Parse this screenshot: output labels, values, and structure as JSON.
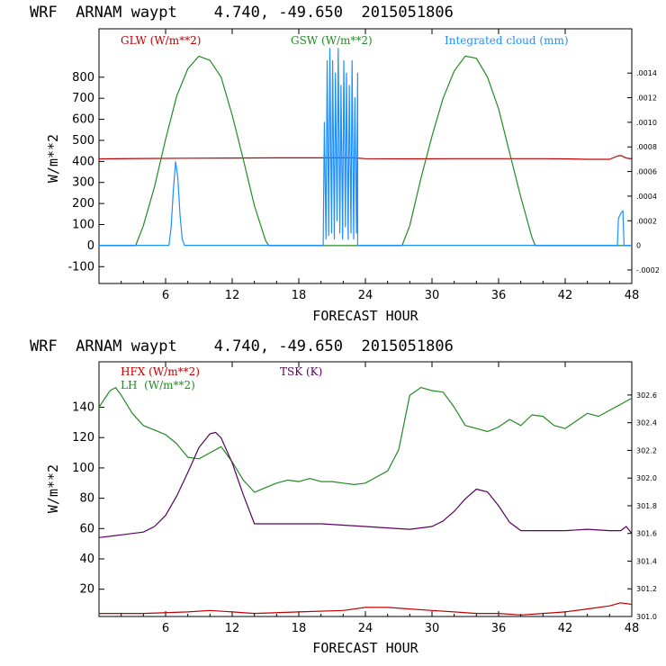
{
  "colors": {
    "red": "#c00000",
    "green": "#228b22",
    "blue": "#1e8fff",
    "purple": "#5a0060"
  },
  "chart_data": [
    {
      "type": "line",
      "title": "WRF  ARNAM waypt    4.740, -49.650  2015051806",
      "xlabel": "FORECAST HOUR",
      "ylabel": "W/m**2",
      "xlim": [
        0,
        48
      ],
      "ylim": [
        -180,
        1030
      ],
      "xticks": [
        6,
        12,
        18,
        24,
        30,
        36,
        42,
        48
      ],
      "yticks": [
        -100,
        0,
        100,
        200,
        300,
        400,
        500,
        600,
        700,
        800
      ],
      "y2ticks": [
        "-.0002",
        "0",
        ".0002",
        ".0004",
        ".0006",
        ".0008",
        ".0010",
        ".0012",
        ".0014"
      ],
      "y2ticks_values": [
        -0.0002,
        0,
        0.0002,
        0.0004,
        0.0006,
        0.0008,
        0.001,
        0.0012,
        0.0014
      ],
      "y2lim": [
        -0.00031,
        0.00176
      ],
      "legend": [
        {
          "name": "GLW (W/m**2)",
          "color": "#c00000"
        },
        {
          "name": "GSW (W/m**2)",
          "color": "#228b22"
        },
        {
          "name": "Integrated cloud (mm)",
          "color": "#1e8fff"
        }
      ],
      "series": [
        {
          "name": "GLW (W/m**2)",
          "axis": "left",
          "color": "#c00000",
          "x": [
            0,
            4,
            8,
            12,
            16,
            20,
            23,
            24,
            28,
            32,
            36,
            40,
            42,
            44,
            46,
            46.7,
            47,
            47.5,
            48
          ],
          "y": [
            412,
            414,
            415,
            416,
            417,
            417,
            417,
            413,
            412,
            413,
            413,
            413,
            412,
            410,
            410,
            425,
            428,
            416,
            412
          ]
        },
        {
          "name": "GSW (W/m**2)",
          "axis": "left",
          "color": "#228b22",
          "x": [
            0,
            3,
            3.3,
            4,
            5,
            6,
            7,
            8,
            9,
            10,
            11,
            12,
            13,
            14,
            15,
            15.3,
            27,
            27.3,
            28,
            29,
            30,
            31,
            32,
            33,
            34,
            35,
            36,
            37,
            38,
            39,
            39.3,
            48
          ],
          "y": [
            0,
            0,
            0,
            95,
            280,
            505,
            710,
            840,
            900,
            880,
            800,
            620,
            410,
            190,
            25,
            0,
            0,
            0,
            95,
            320,
            520,
            700,
            830,
            900,
            890,
            800,
            650,
            440,
            230,
            40,
            0,
            0
          ]
        },
        {
          "name": "Integrated cloud (mm)",
          "axis": "right",
          "color": "#1e8fff",
          "x": [
            0,
            6.3,
            6.5,
            6.7,
            6.9,
            7.1,
            7.3,
            7.5,
            7.7,
            8.0,
            20.2,
            20.3,
            20.45,
            20.55,
            20.7,
            20.8,
            20.95,
            21.05,
            21.2,
            21.3,
            21.45,
            21.55,
            21.7,
            21.8,
            21.95,
            22.05,
            22.2,
            22.3,
            22.45,
            22.55,
            22.7,
            22.8,
            22.95,
            23.05,
            23.2,
            23.3,
            23.3,
            46.7,
            46.8,
            47.0,
            47.2,
            47.3,
            48
          ],
          "y": [
            0,
            0,
            0.00015,
            0.00045,
            0.00068,
            0.00055,
            0.00025,
            5e-05,
            0,
            0,
            0,
            0.001,
            5e-05,
            0.0015,
            8e-05,
            0.0016,
            0.0001,
            0.0015,
            5e-05,
            0.0014,
            0.0002,
            0.0016,
            0.0001,
            0.0013,
            5e-05,
            0.0015,
            0.00015,
            0.0014,
            5e-05,
            0.0013,
            0.0001,
            0.0015,
            5e-05,
            0.0012,
            0.0001,
            0.0014,
            0,
            0,
            0.00022,
            0.00026,
            0.00028,
            0,
            0
          ]
        }
      ]
    },
    {
      "type": "line",
      "title": "WRF  ARNAM waypt    4.740, -49.650  2015051806",
      "xlabel": "FORECAST HOUR",
      "ylabel": "W/m**2",
      "xlim": [
        0,
        48
      ],
      "ylim": [
        2,
        170
      ],
      "xticks": [
        6,
        12,
        18,
        24,
        30,
        36,
        42,
        48
      ],
      "yticks": [
        20,
        40,
        60,
        80,
        100,
        120,
        140
      ],
      "y2ticks": [
        "301.0",
        "301.2",
        "301.4",
        "301.6",
        "301.8",
        "302.0",
        "302.2",
        "302.4",
        "302.6"
      ],
      "y2ticks_values": [
        301.0,
        301.2,
        301.4,
        301.6,
        301.8,
        302.0,
        302.2,
        302.4,
        302.6
      ],
      "y2lim": [
        301.0,
        302.84
      ],
      "legend": [
        {
          "name": "HFX (W/m**2)",
          "color": "#c00000"
        },
        {
          "name": "LH  (W/m**2)",
          "color": "#228b22"
        },
        {
          "name": "TSK (K)",
          "color": "#5a0060"
        }
      ],
      "series": [
        {
          "name": "HFX (W/m**2)",
          "axis": "left",
          "color": "#c00000",
          "x": [
            0,
            4,
            8,
            10,
            12,
            14,
            18,
            22,
            24,
            26,
            28,
            30,
            32,
            34,
            36,
            38,
            40,
            42,
            44,
            46,
            47,
            48
          ],
          "y": [
            4,
            4,
            5,
            6,
            5,
            4,
            5,
            6,
            8,
            8,
            7,
            6,
            5,
            4,
            4,
            3,
            4,
            5,
            7,
            9,
            11,
            10
          ]
        },
        {
          "name": "LH  (W/m**2)",
          "axis": "left",
          "color": "#228b22",
          "x": [
            0,
            1,
            1.5,
            2,
            3,
            4,
            5,
            6,
            7,
            8,
            9,
            10,
            11,
            12,
            13,
            14,
            15,
            16,
            17,
            18,
            19,
            20,
            21,
            22,
            23,
            24,
            25,
            26,
            27,
            28,
            29,
            30,
            31,
            32,
            33,
            34,
            35,
            36,
            37,
            38,
            39,
            40,
            41,
            42,
            43,
            44,
            45,
            46,
            47,
            48
          ],
          "y": [
            140,
            151,
            153,
            148,
            136,
            128,
            125,
            122,
            116,
            107,
            106,
            110,
            114,
            104,
            92,
            84,
            87,
            90,
            92,
            91,
            93,
            91,
            91,
            90,
            89,
            90,
            94,
            98,
            112,
            148,
            153,
            151,
            150,
            140,
            128,
            126,
            124,
            127,
            132,
            128,
            135,
            134,
            128,
            126,
            131,
            136,
            134,
            138,
            142,
            146
          ]
        },
        {
          "name": "TSK (K)",
          "axis": "right",
          "color": "#5a0060",
          "x": [
            0,
            2,
            4,
            5,
            6,
            7,
            8,
            9,
            10,
            10.5,
            11,
            12,
            13,
            14,
            16,
            18,
            20,
            22,
            24,
            26,
            28,
            30,
            31,
            32,
            33,
            34,
            35,
            36,
            37,
            38,
            40,
            42,
            44,
            46,
            47,
            47.5,
            48
          ],
          "y": [
            301.57,
            301.59,
            301.61,
            301.65,
            301.73,
            301.87,
            302.04,
            302.22,
            302.32,
            302.33,
            302.29,
            302.11,
            301.88,
            301.67,
            301.67,
            301.67,
            301.67,
            301.66,
            301.65,
            301.64,
            301.63,
            301.65,
            301.69,
            301.76,
            301.85,
            301.92,
            301.9,
            301.8,
            301.68,
            301.62,
            301.62,
            301.62,
            301.63,
            301.62,
            301.62,
            301.65,
            301.6
          ]
        }
      ]
    }
  ]
}
